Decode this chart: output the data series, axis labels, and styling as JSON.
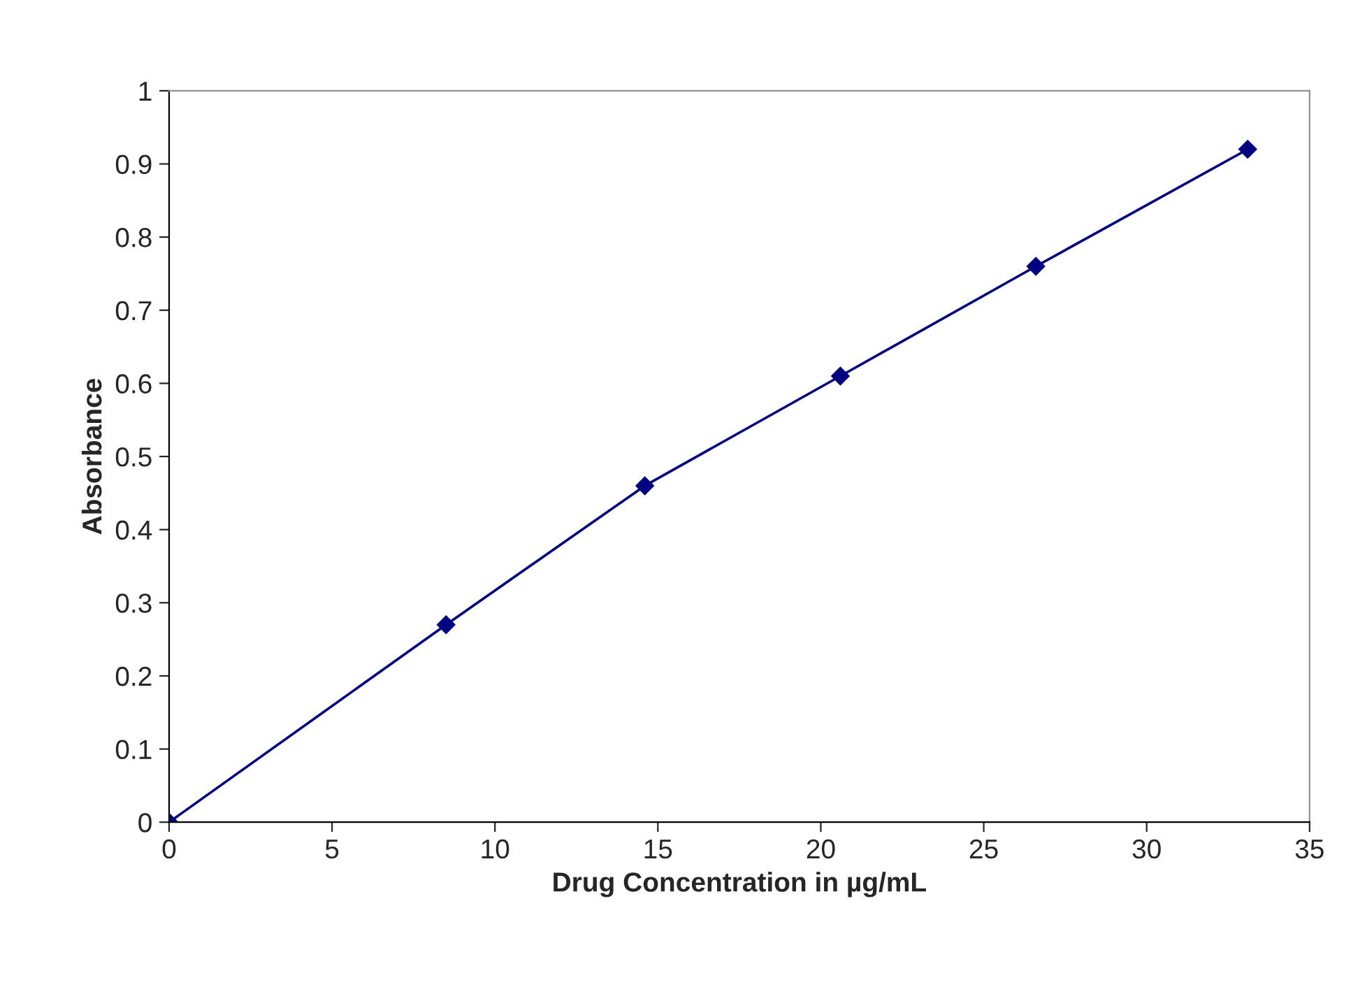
{
  "chart_data": {
    "type": "line",
    "xlabel": "Drug Concentration in µg/mL",
    "ylabel": "Absorbance",
    "x": [
      0,
      8.5,
      14.6,
      20.6,
      26.6,
      33.1
    ],
    "series": [
      {
        "color": "#000080",
        "values": [
          0,
          0.27,
          0.46,
          0.61,
          0.76,
          0.92
        ]
      }
    ],
    "xlim": [
      0,
      35
    ],
    "xticks": [
      0,
      5,
      10,
      15,
      20,
      25,
      30,
      35
    ],
    "ylim": [
      0,
      1
    ],
    "yticks": [
      0,
      0.1,
      0.2,
      0.3,
      0.4,
      0.5,
      0.6,
      0.7,
      0.8,
      0.9,
      1
    ],
    "marker": "diamond",
    "line_style": "solid",
    "grid": false,
    "legend": false
  }
}
